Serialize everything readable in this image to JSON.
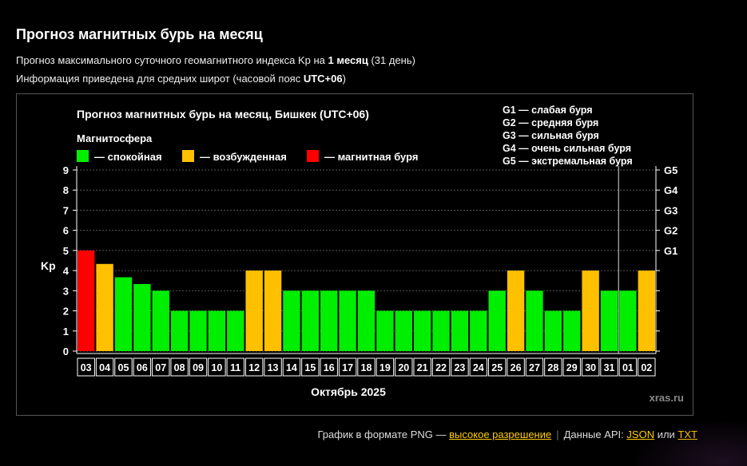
{
  "header": {
    "title": "Прогноз магнитных бурь на месяц",
    "desc1_pre": "Прогноз максимального суточного геомагнитного индекса Kp на ",
    "desc1_bold": "1 месяц",
    "desc1_post": " (31 день)",
    "desc2_pre": "Информация приведена для средних широт (часовой пояс ",
    "desc2_bold": "UTC+06",
    "desc2_post": ")"
  },
  "chart_data": {
    "type": "bar",
    "title": "Прогноз магнитных бурь на месяц, Бишкек (UTC+06)",
    "legend_title": "Магнитосфера",
    "legend": [
      {
        "label": "— спокойная",
        "color": "#00ee00"
      },
      {
        "label": "— возбужденная",
        "color": "#ffc000"
      },
      {
        "label": "— магнитная буря",
        "color": "#ff0000"
      }
    ],
    "g_scale": [
      "G1 — слабая буря",
      "G2 — средняя буря",
      "G3 — сильная буря",
      "G4 — очень сильная буря",
      "G5 — экстремальная буря"
    ],
    "ylabel": "Kp",
    "xlabel": "Октябрь 2025",
    "ylim": [
      0,
      9
    ],
    "yticks": [
      "0",
      "1",
      "2",
      "3",
      "4",
      "5",
      "6",
      "7",
      "8",
      "9"
    ],
    "g_ticks": [
      {
        "label": "G1",
        "kp": 5
      },
      {
        "label": "G2",
        "kp": 6
      },
      {
        "label": "G3",
        "kp": 7
      },
      {
        "label": "G4",
        "kp": 8
      },
      {
        "label": "G5",
        "kp": 9
      }
    ],
    "categories": [
      "03",
      "04",
      "05",
      "06",
      "07",
      "08",
      "09",
      "10",
      "11",
      "12",
      "13",
      "14",
      "15",
      "16",
      "17",
      "18",
      "19",
      "20",
      "21",
      "22",
      "23",
      "24",
      "25",
      "26",
      "27",
      "28",
      "29",
      "30",
      "31",
      "01",
      "02"
    ],
    "values": [
      5,
      4.33,
      3.67,
      3.33,
      3,
      2,
      2,
      2,
      2,
      4,
      4,
      3,
      3,
      3,
      3,
      3,
      2,
      2,
      2,
      2,
      2,
      2,
      3,
      4,
      3,
      2,
      2,
      4,
      3,
      3,
      4
    ],
    "month_divider_after": "31",
    "grid": true,
    "watermark": "xras.ru"
  },
  "footer": {
    "png_label": "График в формате PNG —",
    "hires_link": "высокое разрешение",
    "sep": "|",
    "api_label": "Данные API:",
    "json_link": "JSON",
    "or": "или",
    "txt_link": "TXT"
  },
  "colors": {
    "quiet": "#00ee00",
    "active": "#ffc000",
    "storm": "#ff0000"
  }
}
